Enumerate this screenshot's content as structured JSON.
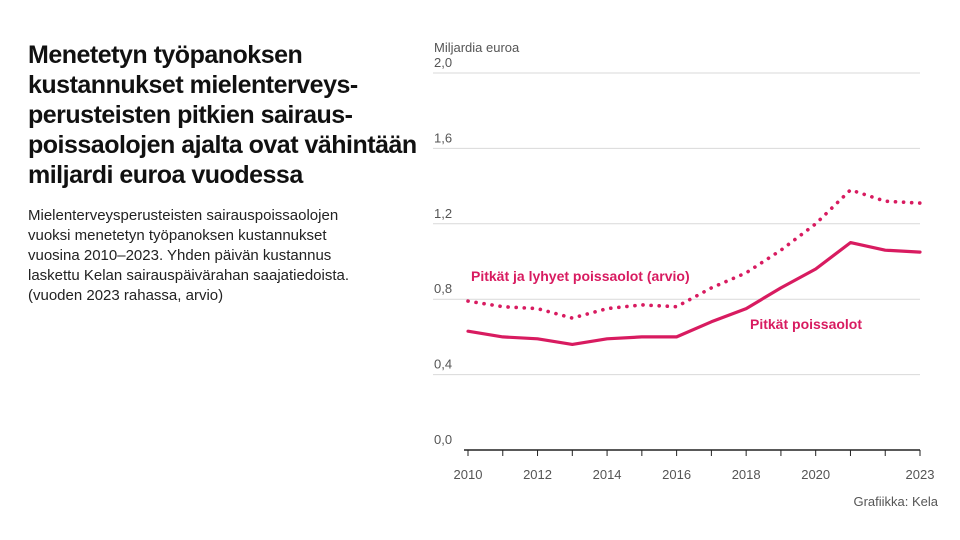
{
  "title_lines": [
    "Menetetyn työpanoksen",
    "kustannukset mielenterveys-",
    "perusteisten pitkien sairaus-",
    "poissaolojen ajalta ovat vähintään",
    "miljardi euroa vuodessa"
  ],
  "description_lines": [
    "Mielenterveysperusteisten sairauspoissaolojen",
    "vuoksi menetetyn työpanoksen kustannukset",
    "vuosina 2010–2023. Yhden päivän kustannus",
    "laskettu Kelan sairauspäivärahan saajatiedoista.",
    "(vuoden 2023 rahassa, arvio)"
  ],
  "credit": "Grafiikka: Kela",
  "colors": {
    "accent": "#d81b60",
    "grid": "#d9d9d9",
    "axis": "#222222"
  },
  "chart_data": {
    "type": "line",
    "ylabel": "Miljardia euroa",
    "ylim": [
      0,
      2.0
    ],
    "xlim": [
      2010,
      2023
    ],
    "y_ticks": [
      0.0,
      0.4,
      0.8,
      1.2,
      1.6,
      2.0
    ],
    "y_tick_labels": [
      "0,0",
      "0,4",
      "0,8",
      "1,2",
      "1,6",
      "2,0"
    ],
    "x_ticks": [
      2010,
      2012,
      2014,
      2016,
      2018,
      2020,
      2023
    ],
    "x_tick_labels": [
      "2010",
      "2012",
      "2014",
      "2016",
      "2018",
      "2020",
      "2023"
    ],
    "x_minor_ticks": [
      2010,
      2011,
      2012,
      2013,
      2014,
      2015,
      2016,
      2017,
      2018,
      2019,
      2020,
      2021,
      2022,
      2023
    ],
    "x": [
      2010,
      2011,
      2012,
      2013,
      2014,
      2015,
      2016,
      2017,
      2018,
      2019,
      2020,
      2021,
      2022,
      2023
    ],
    "series": [
      {
        "name": "Pitkät ja lyhyet poissaolot (arvio)",
        "style": "dotted",
        "values": [
          0.79,
          0.76,
          0.75,
          0.7,
          0.75,
          0.77,
          0.76,
          0.86,
          0.94,
          1.06,
          1.2,
          1.38,
          1.32,
          1.31
        ]
      },
      {
        "name": "Pitkät poissaolot",
        "style": "solid",
        "values": [
          0.63,
          0.6,
          0.59,
          0.56,
          0.59,
          0.6,
          0.6,
          0.68,
          0.75,
          0.86,
          0.96,
          1.1,
          1.06,
          1.05
        ]
      }
    ]
  }
}
